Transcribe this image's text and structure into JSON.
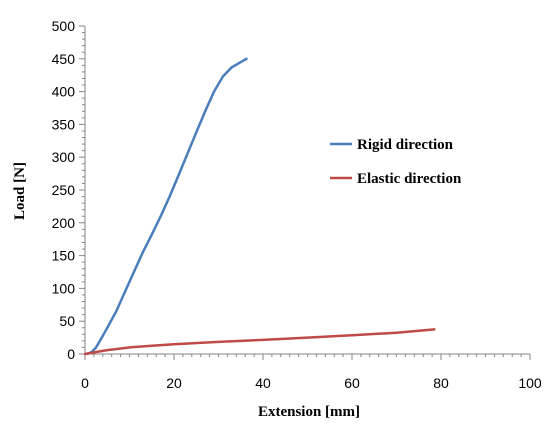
{
  "chart_data": {
    "type": "line",
    "title": "",
    "xlabel": "Extension [mm]",
    "ylabel": "Load [N]",
    "xlim": [
      0,
      100
    ],
    "ylim": [
      0,
      500
    ],
    "x_ticks": [
      0,
      20,
      40,
      60,
      80,
      100
    ],
    "y_ticks": [
      0,
      50,
      100,
      150,
      200,
      250,
      300,
      350,
      400,
      450,
      500
    ],
    "x_tick_labels": [
      "0",
      "20",
      "40",
      "60",
      "80",
      "100"
    ],
    "y_tick_labels": [
      "0",
      "50",
      "100",
      "150",
      "200",
      "250",
      "300",
      "350",
      "400",
      "450",
      "500"
    ],
    "grid": false,
    "legend_position": "right",
    "series": [
      {
        "name": "Rigid direction",
        "color": "#4a7ebb",
        "x": [
          0.5,
          1.5,
          2.5,
          3.5,
          5,
          7,
          9,
          11,
          13,
          15,
          17,
          19,
          21,
          23,
          25,
          27,
          29,
          31,
          33,
          35,
          36.3
        ],
        "y": [
          0,
          3,
          10,
          22,
          40,
          65,
          95,
          125,
          155,
          182,
          210,
          240,
          272,
          305,
          338,
          370,
          400,
          423,
          437,
          445,
          450
        ]
      },
      {
        "name": "Elastic direction",
        "color": "#be4b48",
        "x": [
          0,
          2,
          5,
          10,
          15,
          20,
          30,
          40,
          50,
          60,
          70,
          78.5
        ],
        "y": [
          0,
          2.5,
          6,
          10,
          12.5,
          15,
          18.5,
          21.5,
          25,
          28.5,
          32.5,
          37.5
        ]
      }
    ]
  }
}
